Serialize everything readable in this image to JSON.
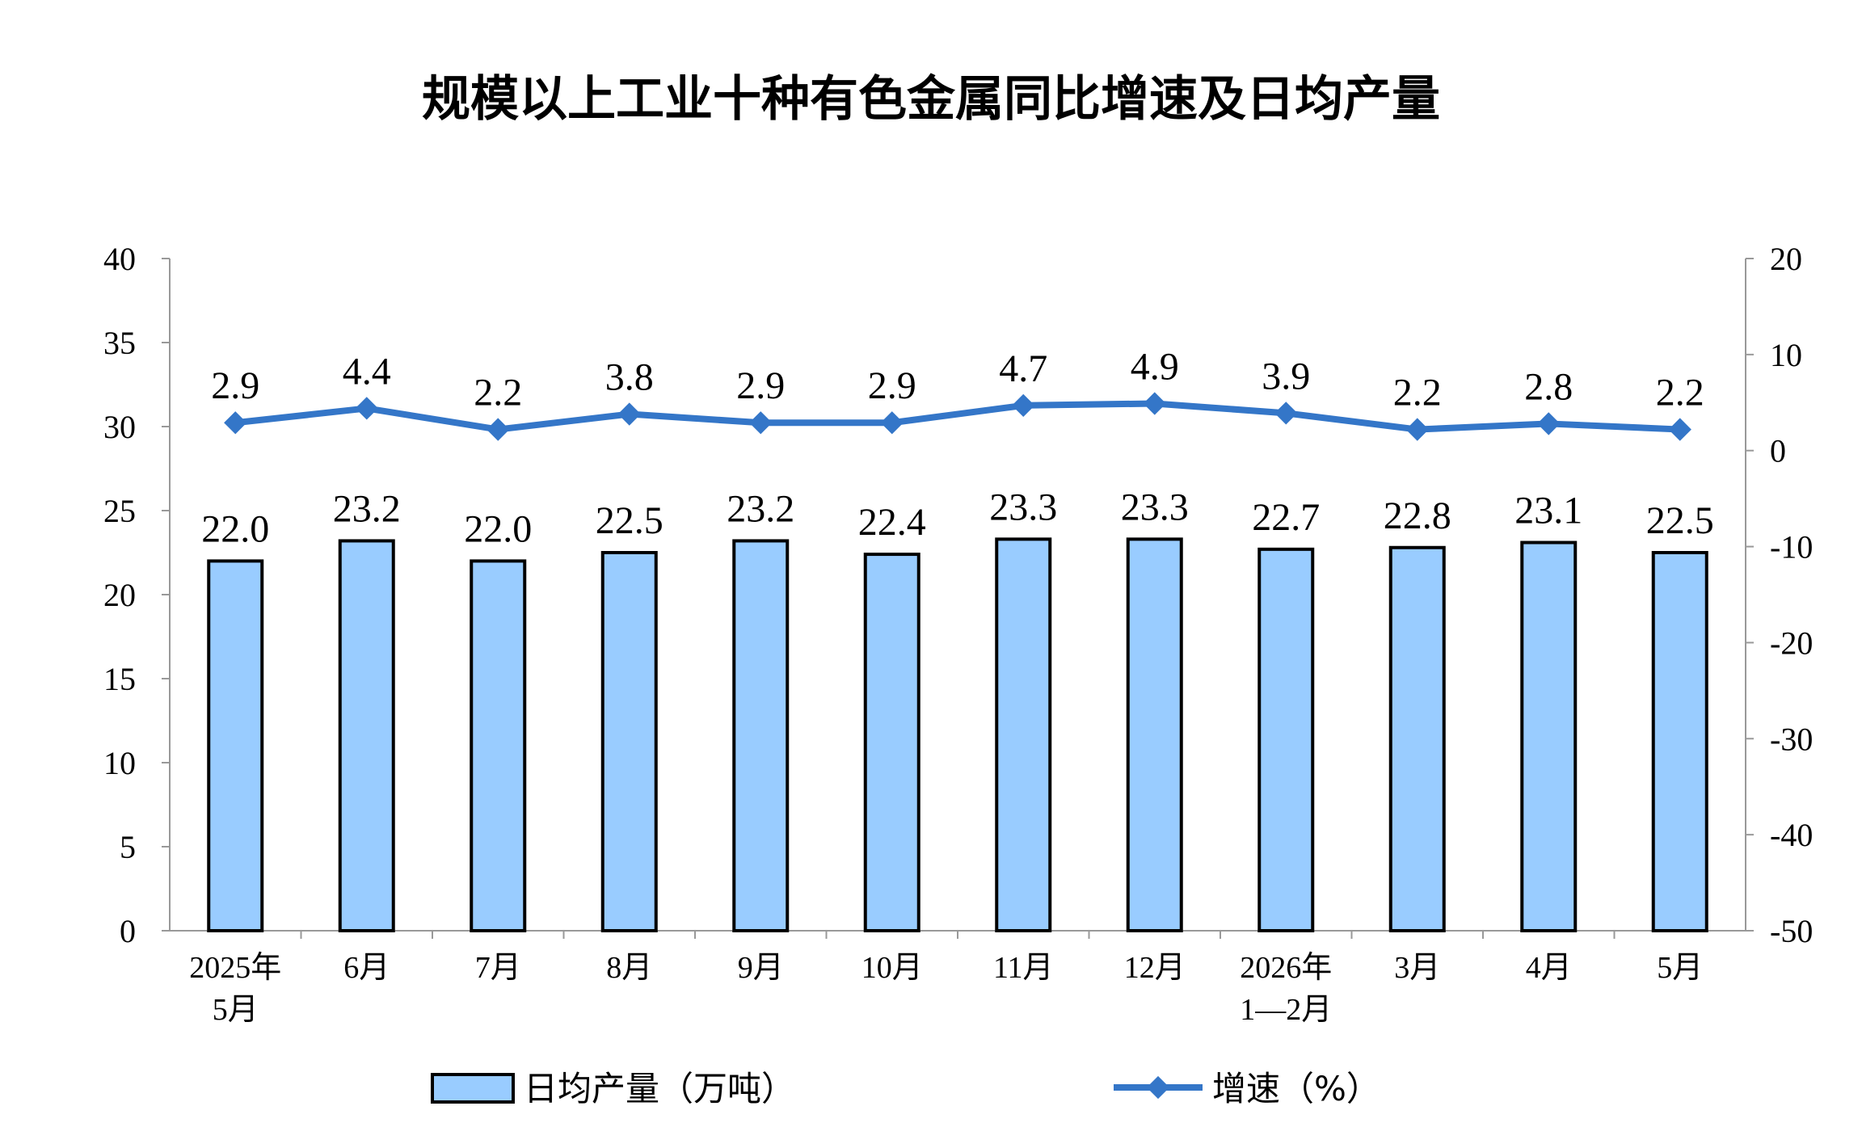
{
  "chart_data": {
    "type": "bar+line",
    "title": "规模以上工业十种有色金属同比增速及日均产量",
    "categories": [
      [
        "2025年",
        "5月"
      ],
      [
        "6月"
      ],
      [
        "7月"
      ],
      [
        "8月"
      ],
      [
        "9月"
      ],
      [
        "10月"
      ],
      [
        "11月"
      ],
      [
        "12月"
      ],
      [
        "2026年",
        "1—2月"
      ],
      [
        "3月"
      ],
      [
        "4月"
      ],
      [
        "5月"
      ]
    ],
    "series": [
      {
        "name": "日均产量（万吨）",
        "type": "bar",
        "axis": "left",
        "color": "#99CCFF",
        "values": [
          22.0,
          23.2,
          22.0,
          22.5,
          23.2,
          22.4,
          23.3,
          23.3,
          22.7,
          22.8,
          23.1,
          22.5
        ],
        "labels": [
          "22.0",
          "23.2",
          "22.0",
          "22.5",
          "23.2",
          "22.4",
          "23.3",
          "23.3",
          "22.7",
          "22.8",
          "23.1",
          "22.5"
        ]
      },
      {
        "name": "增速（%）",
        "type": "line",
        "axis": "right",
        "color": "#3476C8",
        "values": [
          2.9,
          4.4,
          2.2,
          3.8,
          2.9,
          2.9,
          4.7,
          4.9,
          3.9,
          2.2,
          2.8,
          2.2
        ],
        "labels": [
          "2.9",
          "4.4",
          "2.2",
          "3.8",
          "2.9",
          "2.9",
          "4.7",
          "4.9",
          "3.9",
          "2.2",
          "2.8",
          "2.2"
        ]
      }
    ],
    "y_left": {
      "min": 0,
      "max": 40,
      "step": 5,
      "ticks": [
        "0",
        "5",
        "10",
        "15",
        "20",
        "25",
        "30",
        "35",
        "40"
      ]
    },
    "y_right": {
      "min": -50,
      "max": 20,
      "step": 10,
      "ticks": [
        "-50",
        "-40",
        "-30",
        "-20",
        "-10",
        "0",
        "10",
        "20"
      ]
    },
    "grid": false,
    "legend_position": "bottom"
  }
}
